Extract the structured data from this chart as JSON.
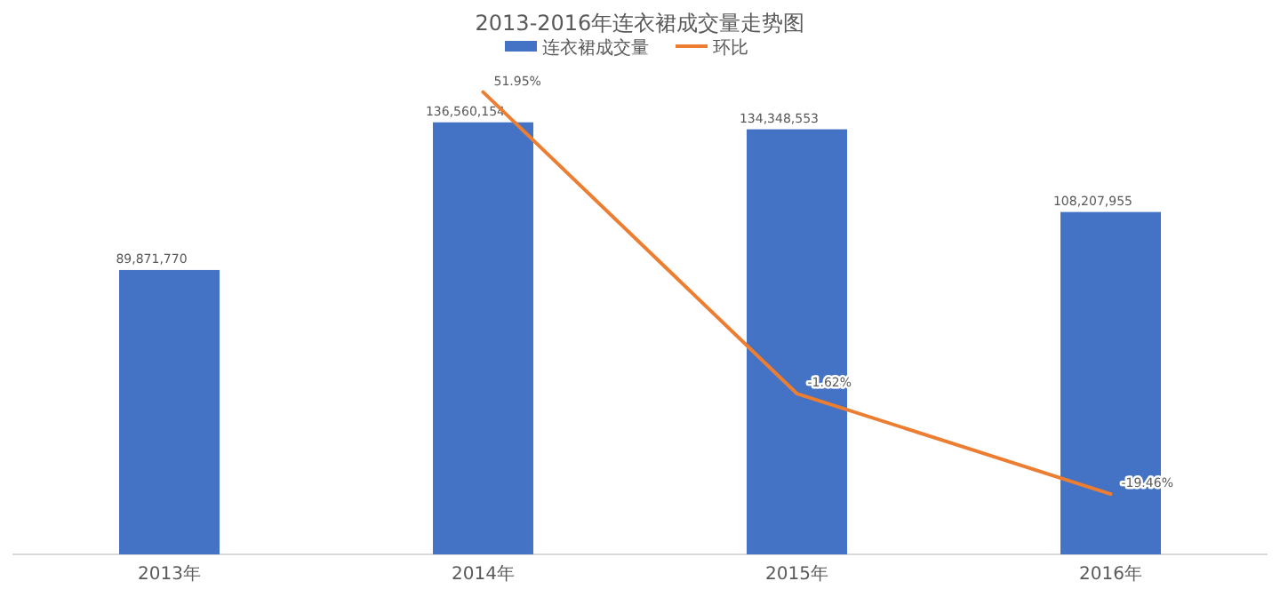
{
  "chart_data": {
    "type": "bar",
    "title": "2013-2016年连衣裙成交量走势图",
    "categories": [
      "2013年",
      "2014年",
      "2015年",
      "2016年"
    ],
    "series": [
      {
        "name": "连衣裙成交量",
        "color": "#4472c4",
        "values": [
          89871770,
          136560154,
          134348553,
          108207955
        ],
        "value_labels": [
          "89,871,770",
          "136,560,154",
          "134,348,553",
          "108,207,955"
        ]
      },
      {
        "name": "环比",
        "type": "line",
        "axis": "y2",
        "color": "#ed7d31",
        "values": [
          null,
          51.95,
          -1.62,
          -19.46
        ],
        "value_labels": [
          null,
          "51.95%",
          "-1.62%",
          "-19.46%"
        ]
      }
    ],
    "legend": "top",
    "tick_labels": "x"
  }
}
